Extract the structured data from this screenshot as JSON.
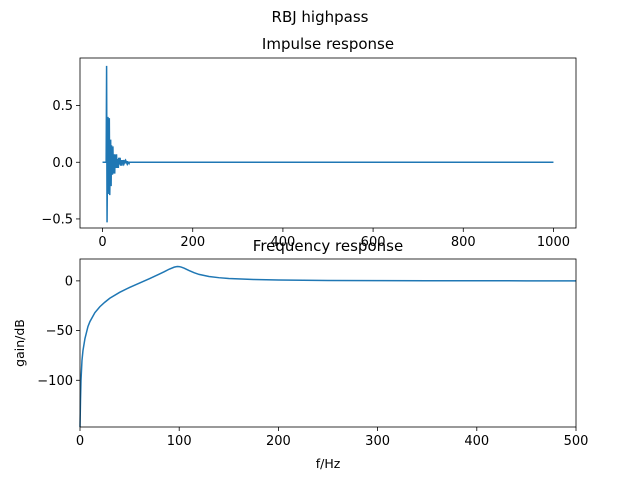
{
  "suptitle": "RBJ highpass",
  "line_color": "#1f77b4",
  "chart_data": [
    {
      "type": "line",
      "title": "Impulse response",
      "xlabel": "",
      "ylabel": "",
      "xlim": [
        -50,
        1050
      ],
      "ylim": [
        -0.58,
        0.92
      ],
      "xticks": [
        0,
        200,
        400,
        600,
        800,
        1000
      ],
      "xtick_labels": [
        "0",
        "200",
        "400",
        "600",
        "800",
        "1000"
      ],
      "yticks": [
        -0.5,
        0.0,
        0.5
      ],
      "ytick_labels": [
        "−0.5",
        "0.0",
        "0.5"
      ],
      "grid": false,
      "series": [
        {
          "x": [
            0,
            8,
            9,
            10,
            11,
            12,
            13,
            14,
            15,
            16,
            17,
            18,
            19,
            20,
            21,
            22,
            23,
            24,
            25,
            26,
            27,
            28,
            29,
            30,
            31,
            32,
            33,
            34,
            35,
            36,
            37,
            38,
            39,
            40,
            41,
            42,
            43,
            44,
            45,
            46,
            47,
            48,
            49,
            50,
            51,
            52,
            53,
            54,
            55,
            56,
            57,
            58,
            59,
            60,
            61,
            62,
            63,
            64,
            65,
            66,
            67,
            68,
            69,
            70,
            71,
            72,
            73,
            74,
            75,
            76,
            77,
            78,
            79,
            80,
            81,
            82,
            83,
            84,
            85,
            86,
            87,
            88,
            89,
            90,
            91,
            92,
            93,
            94,
            95,
            96,
            97,
            98,
            99,
            100,
            101,
            102,
            103,
            104,
            105,
            106,
            107,
            108,
            109,
            110,
            111,
            112,
            113,
            114,
            115,
            116,
            117,
            118,
            119,
            120,
            1000
          ],
          "y": [
            0.0,
            0.0,
            0.85,
            -0.53,
            0.0,
            0.4,
            -0.06,
            -0.28,
            0.39,
            -0.29,
            0.0,
            0.2,
            -0.21,
            0.15,
            -0.01,
            -0.11,
            0.14,
            -0.1,
            0.0,
            0.07,
            -0.1,
            0.07,
            0.0,
            -0.05,
            0.07,
            -0.05,
            0.0,
            0.03,
            -0.05,
            0.04,
            0.0,
            -0.02,
            0.04,
            -0.03,
            0.0,
            0.02,
            -0.03,
            0.02,
            0.0,
            -0.01,
            0.02,
            -0.01,
            0.0,
            0.01,
            -0.01,
            0.01,
            0.0,
            -0.01,
            0.01,
            -0.01,
            0.0,
            0.0,
            -0.01,
            0.0,
            0.0,
            0.0,
            0.0,
            0.0,
            0.0,
            0.0,
            0.0,
            0.0,
            0.0,
            0.0,
            0.0,
            0.0,
            0.0,
            0.0,
            0.0,
            0.0,
            0.0,
            0.0,
            0.0,
            0.0,
            0.0,
            0.0,
            0.0,
            0.0,
            0.0,
            0.0,
            0.0,
            0.0,
            0.0,
            0.0,
            0.0,
            0.0,
            0.0,
            0.0,
            0.0,
            0.0,
            0.0,
            0.0,
            0.0,
            0.0,
            0.0,
            0.0,
            0.0,
            0.0,
            0.0,
            0.0,
            0.0,
            0.0,
            0.0,
            0.0,
            0.0,
            0.0,
            0.0,
            0.0,
            0.0,
            0.0,
            0.0,
            0.0,
            0.0,
            0.0,
            0.0
          ]
        }
      ]
    },
    {
      "type": "line",
      "title": "Frequency response",
      "xlabel": "f/Hz",
      "ylabel": "gain/dB",
      "xlim": [
        0,
        500
      ],
      "ylim": [
        -147,
        22
      ],
      "xticks": [
        0,
        100,
        200,
        300,
        400,
        500
      ],
      "xtick_labels": [
        "0",
        "100",
        "200",
        "300",
        "400",
        "500"
      ],
      "yticks": [
        -100,
        -50,
        0
      ],
      "ytick_labels": [
        "−100",
        "−50",
        "0"
      ],
      "grid": false,
      "series": [
        {
          "x": [
            0,
            0.5,
            1,
            2,
            3,
            5,
            8,
            10,
            15,
            20,
            25,
            30,
            40,
            50,
            60,
            70,
            80,
            85,
            90,
            95,
            98,
            100,
            102,
            105,
            110,
            115,
            120,
            130,
            140,
            150,
            175,
            200,
            225,
            250,
            300,
            350,
            400,
            450,
            500
          ],
          "y": [
            -147,
            -120,
            -100,
            -80,
            -70,
            -58,
            -46,
            -41,
            -32,
            -26,
            -21.5,
            -17.5,
            -11.5,
            -6.6,
            -2.2,
            2.2,
            6.8,
            9.2,
            11.8,
            13.8,
            14.4,
            14.3,
            13.9,
            12.8,
            10.4,
            8.2,
            6.5,
            4.4,
            3.2,
            2.4,
            1.4,
            0.9,
            0.6,
            0.4,
            0.25,
            0.15,
            0.1,
            0.05,
            0.03
          ]
        }
      ]
    }
  ]
}
